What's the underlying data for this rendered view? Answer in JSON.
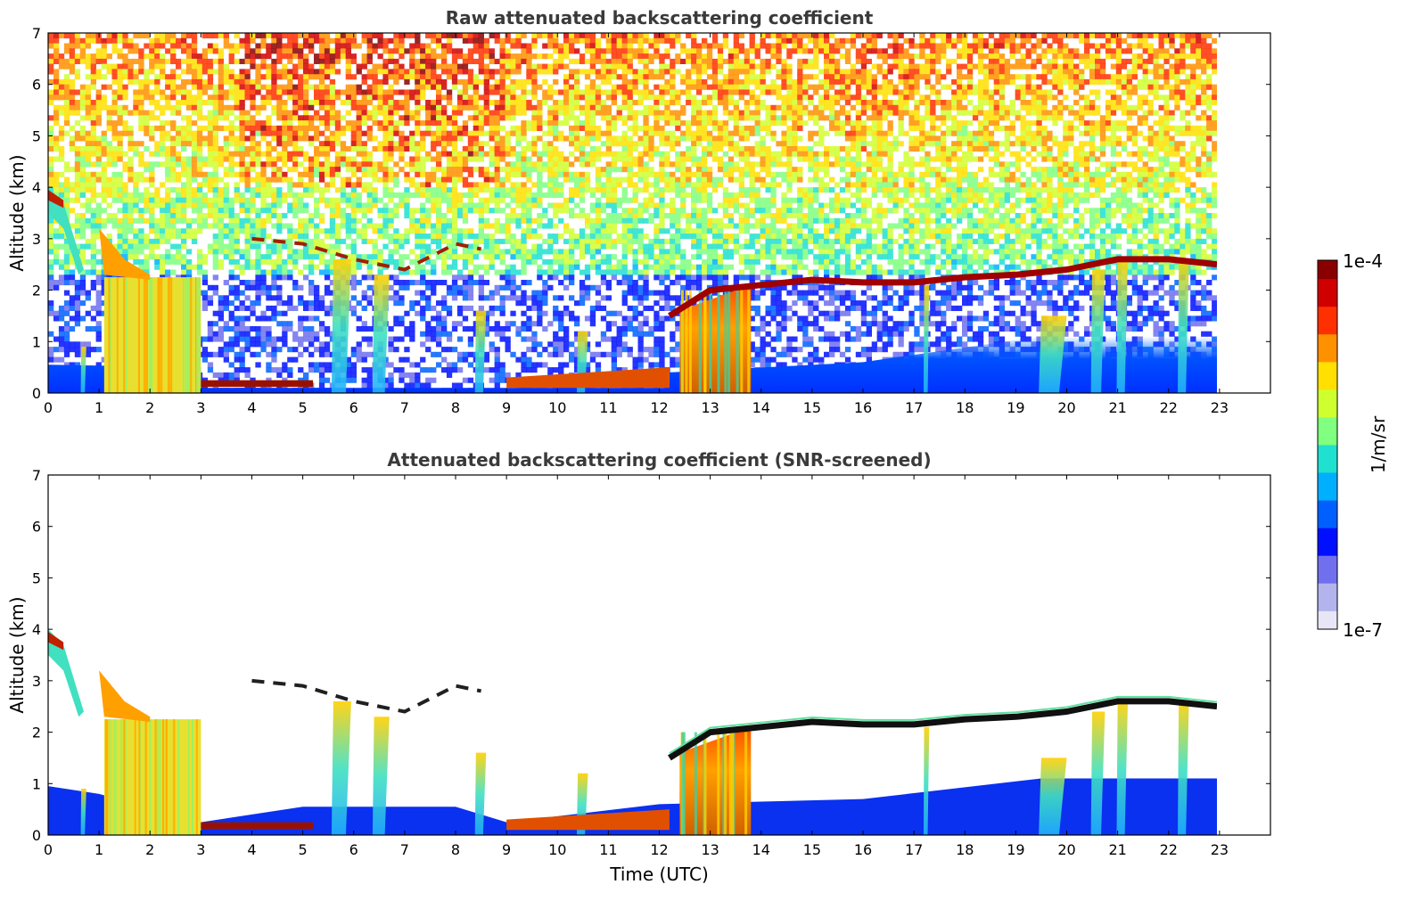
{
  "chart_data": [
    {
      "type": "heatmap",
      "title": "Raw attenuated backscattering coefficient",
      "xlabel": "",
      "ylabel": "Altitude (km)",
      "xlim": [
        0,
        24
      ],
      "ylim": [
        0,
        7
      ],
      "xticks": [
        "0",
        "1",
        "2",
        "3",
        "4",
        "5",
        "6",
        "7",
        "8",
        "9",
        "10",
        "11",
        "12",
        "13",
        "14",
        "15",
        "16",
        "17",
        "18",
        "19",
        "20",
        "21",
        "22",
        "23"
      ],
      "yticks": [
        "0",
        "1",
        "2",
        "3",
        "4",
        "5",
        "6",
        "7"
      ],
      "data_extent_x": [
        0,
        22.95
      ],
      "features": {
        "cloud_layer_top_km": [
          [
            0,
            3.85
          ],
          [
            0.3,
            3.7
          ],
          [
            1.2,
            2.6
          ],
          [
            1.8,
            2.3
          ],
          [
            3.0,
            0.15
          ],
          [
            4.0,
            3.0
          ],
          [
            5.0,
            2.9
          ],
          [
            6.0,
            2.6
          ],
          [
            7.0,
            2.4
          ],
          [
            8.0,
            2.9
          ],
          [
            8.5,
            2.8
          ],
          [
            9.0,
            0.2
          ],
          [
            10.0,
            0.3
          ],
          [
            11.0,
            0.35
          ],
          [
            12.2,
            1.5
          ],
          [
            13.0,
            2.0
          ],
          [
            14.0,
            2.1
          ],
          [
            15.0,
            2.2
          ],
          [
            16.0,
            2.15
          ],
          [
            17.0,
            2.15
          ],
          [
            18.0,
            2.25
          ],
          [
            19.0,
            2.3
          ],
          [
            20.0,
            2.4
          ],
          [
            21.0,
            2.6
          ],
          [
            22.0,
            2.6
          ],
          [
            22.95,
            2.5
          ]
        ],
        "precip_shafts_utc": [
          0.5,
          1.3,
          1.8,
          2.4,
          5.6,
          5.8,
          6.4,
          6.7,
          8.4,
          10.4,
          12.8,
          13.2,
          13.6,
          17.2,
          19.5,
          20.5,
          21.0,
          22.2
        ]
      }
    },
    {
      "type": "heatmap",
      "title": "Attenuated backscattering coefficient (SNR-screened)",
      "xlabel": "Time (UTC)",
      "ylabel": "Altitude (km)",
      "xlim": [
        0,
        24
      ],
      "ylim": [
        0,
        7
      ],
      "xticks": [
        "0",
        "1",
        "2",
        "3",
        "4",
        "5",
        "6",
        "7",
        "8",
        "9",
        "10",
        "11",
        "12",
        "13",
        "14",
        "15",
        "16",
        "17",
        "18",
        "19",
        "20",
        "21",
        "22",
        "23"
      ],
      "yticks": [
        "0",
        "1",
        "2",
        "3",
        "4",
        "5",
        "6",
        "7"
      ],
      "data_extent_x": [
        0,
        22.95
      ]
    }
  ],
  "colorbar": {
    "label": "1/m/sr",
    "max_label": "1e-4",
    "min_label": "1e-7",
    "scale": "log",
    "colors": [
      "#e6e6f7",
      "#b3b3ee",
      "#7070ee",
      "#0010ff",
      "#0060ff",
      "#00b0ff",
      "#20e0d0",
      "#80ff80",
      "#d0ff30",
      "#ffe000",
      "#ff9000",
      "#ff3000",
      "#d00000",
      "#8a0000"
    ]
  }
}
